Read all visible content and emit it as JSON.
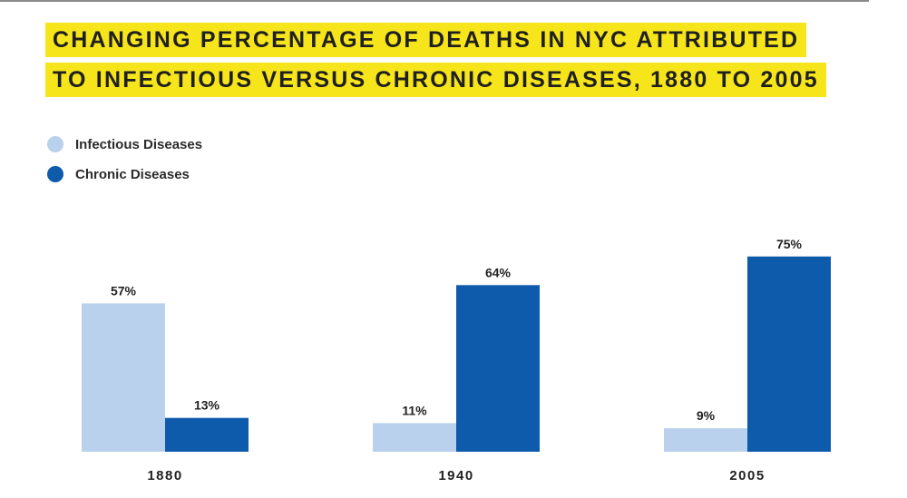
{
  "title_lines": [
    "CHANGING PERCENTAGE OF DEATHS IN NYC ATTRIBUTED",
    "TO INFECTIOUS VERSUS CHRONIC DISEASES, 1880 TO 2005"
  ],
  "chart_data": {
    "type": "bar",
    "title": "CHANGING PERCENTAGE OF DEATHS IN NYC ATTRIBUTED TO INFECTIOUS VERSUS CHRONIC DISEASES, 1880 TO 2005",
    "categories": [
      "1880",
      "1940",
      "2005"
    ],
    "series": [
      {
        "name": "Infectious Diseases",
        "values": [
          57,
          11,
          9
        ],
        "labels": [
          "57%",
          "11%",
          "9%"
        ],
        "color": "#b9d1ec"
      },
      {
        "name": "Chronic Diseases",
        "values": [
          13,
          64,
          75
        ],
        "labels": [
          "13%",
          "64%",
          "75%"
        ],
        "color": "#0e5aab"
      }
    ],
    "unit": "%",
    "ylim": [
      0,
      80
    ],
    "grid": false,
    "legend_position": "top-left",
    "xlabel": "",
    "ylabel": ""
  },
  "colors": {
    "title_highlight": "#f6e51b",
    "infectious": "#b9d1ec",
    "chronic": "#0e5aab"
  }
}
